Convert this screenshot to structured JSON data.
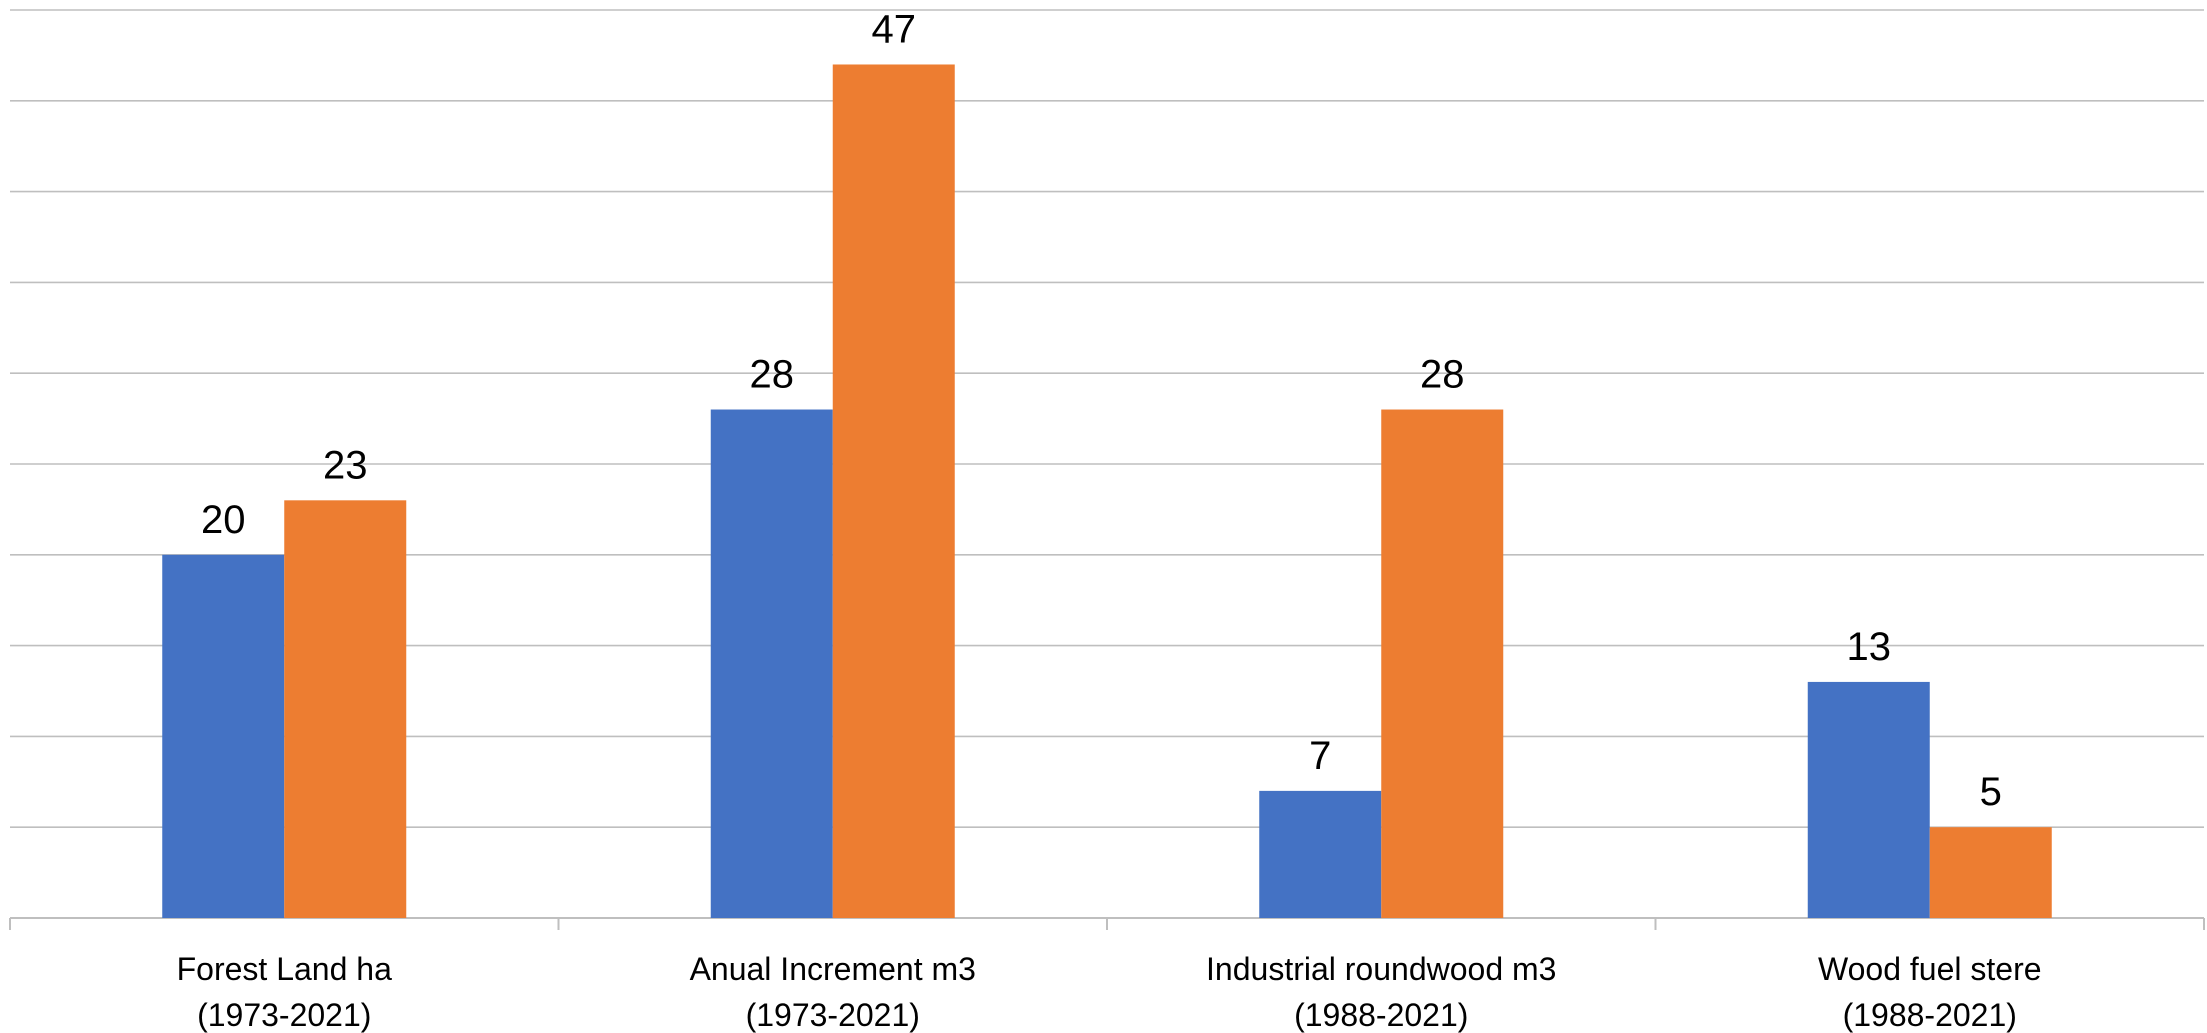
{
  "chart_data": {
    "type": "bar",
    "categories": [
      [
        "Forest Land ha",
        "(1973-2021)"
      ],
      [
        "Anual Increment m3",
        "(1973-2021)"
      ],
      [
        "Industrial roundwood m3",
        "(1988-2021)"
      ],
      [
        "Wood fuel stere",
        "(1988-2021)"
      ]
    ],
    "series": [
      {
        "color": "#4472c4",
        "values": [
          20,
          28,
          7,
          13
        ]
      },
      {
        "color": "#ed7d31",
        "values": [
          23,
          47,
          28,
          5
        ]
      }
    ],
    "ylim": [
      0,
      50
    ],
    "grid_step": 5,
    "grid": true,
    "legend": "none",
    "title": "",
    "xlabel": "",
    "ylabel": ""
  }
}
